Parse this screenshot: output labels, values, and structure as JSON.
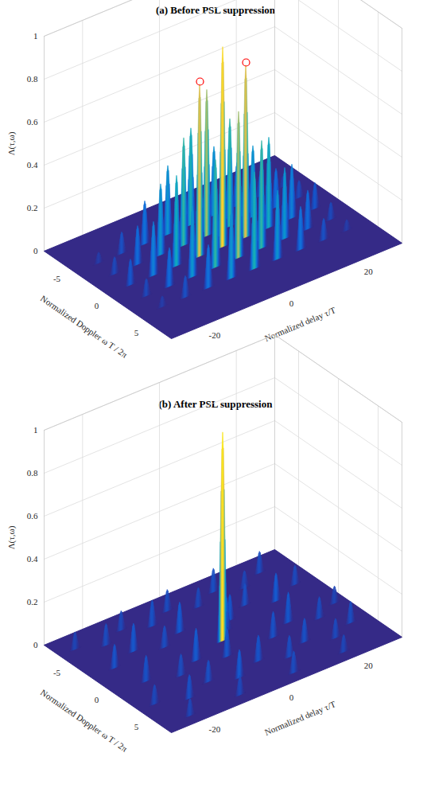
{
  "chart_data": [
    {
      "type": "surface3d",
      "title": "(a) Before PSL suppression",
      "x_label": "Normalized delay τ/T",
      "y_label": "Normalized Doppler ω T / 2π",
      "z_label": "Λ(τ,ω)",
      "xlim": [
        -30,
        30
      ],
      "xticks": [
        -20,
        0,
        20
      ],
      "ylim": [
        -8,
        8
      ],
      "yticks": [
        -5,
        0,
        5
      ],
      "zlim": [
        0,
        1
      ],
      "zticks": [
        0,
        0.2,
        0.4,
        0.6,
        0.8,
        1
      ],
      "grid": true,
      "series": [
        {
          "type": "surface",
          "values": [
            {
              "delay": -24,
              "doppler": -4,
              "value": 0.05
            },
            {
              "delay": -18,
              "doppler": -4,
              "value": 0.1
            },
            {
              "delay": -12,
              "doppler": -4,
              "value": 0.2
            },
            {
              "delay": -6,
              "doppler": -4,
              "value": 0.32
            },
            {
              "delay": 0,
              "doppler": -4,
              "value": 0.45
            },
            {
              "delay": 6,
              "doppler": -4,
              "value": 0.32
            },
            {
              "delay": 12,
              "doppler": -4,
              "value": 0.2
            },
            {
              "delay": 18,
              "doppler": -4,
              "value": 0.1
            },
            {
              "delay": 24,
              "doppler": -4,
              "value": 0.05
            },
            {
              "delay": -24,
              "doppler": -2,
              "value": 0.08
            },
            {
              "delay": -18,
              "doppler": -2,
              "value": 0.18
            },
            {
              "delay": -12,
              "doppler": -2,
              "value": 0.33
            },
            {
              "delay": -6,
              "doppler": -2,
              "value": 0.5
            },
            {
              "delay": 0,
              "doppler": -2,
              "value": 0.68
            },
            {
              "delay": 6,
              "doppler": -2,
              "value": 0.5
            },
            {
              "delay": 12,
              "doppler": -2,
              "value": 0.33
            },
            {
              "delay": 18,
              "doppler": -2,
              "value": 0.18
            },
            {
              "delay": 24,
              "doppler": -2,
              "value": 0.08
            },
            {
              "delay": -24,
              "doppler": 0,
              "value": 0.12
            },
            {
              "delay": -18,
              "doppler": 0,
              "value": 0.25
            },
            {
              "delay": -12,
              "doppler": 0,
              "value": 0.42
            },
            {
              "delay": -6,
              "doppler": 0,
              "value": 0.8
            },
            {
              "delay": 0,
              "doppler": 0,
              "value": 0.93
            },
            {
              "delay": 6,
              "doppler": 0,
              "value": 0.8
            },
            {
              "delay": 12,
              "doppler": 0,
              "value": 0.42
            },
            {
              "delay": 18,
              "doppler": 0,
              "value": 0.25
            },
            {
              "delay": 24,
              "doppler": 0,
              "value": 0.12
            },
            {
              "delay": -24,
              "doppler": 2,
              "value": 0.08
            },
            {
              "delay": -18,
              "doppler": 2,
              "value": 0.18
            },
            {
              "delay": -12,
              "doppler": 2,
              "value": 0.33
            },
            {
              "delay": -6,
              "doppler": 2,
              "value": 0.5
            },
            {
              "delay": 0,
              "doppler": 2,
              "value": 0.68
            },
            {
              "delay": 6,
              "doppler": 2,
              "value": 0.5
            },
            {
              "delay": 12,
              "doppler": 2,
              "value": 0.33
            },
            {
              "delay": 18,
              "doppler": 2,
              "value": 0.18
            },
            {
              "delay": 24,
              "doppler": 2,
              "value": 0.08
            },
            {
              "delay": -24,
              "doppler": 4,
              "value": 0.05
            },
            {
              "delay": -18,
              "doppler": 4,
              "value": 0.1
            },
            {
              "delay": -12,
              "doppler": 4,
              "value": 0.2
            },
            {
              "delay": -6,
              "doppler": 4,
              "value": 0.32
            },
            {
              "delay": 0,
              "doppler": 4,
              "value": 0.45
            },
            {
              "delay": 6,
              "doppler": 4,
              "value": 0.32
            },
            {
              "delay": 12,
              "doppler": 4,
              "value": 0.2
            },
            {
              "delay": 18,
              "doppler": 4,
              "value": 0.1
            },
            {
              "delay": 24,
              "doppler": 4,
              "value": 0.05
            }
          ]
        },
        {
          "type": "scatter",
          "marker": "circle",
          "color": "red",
          "values": [
            {
              "delay": -6,
              "doppler": 0,
              "value": 0.8
            },
            {
              "delay": 6,
              "doppler": 0,
              "value": 0.8
            }
          ]
        }
      ]
    },
    {
      "type": "surface3d",
      "title": "(b) After PSL suppression",
      "x_label": "Normalized delay τ/T",
      "y_label": "Normalized Doppler ω T / 2π",
      "z_label": "Λ(τ,ω)",
      "xlim": [
        -30,
        30
      ],
      "xticks": [
        -20,
        0,
        20
      ],
      "ylim": [
        -8,
        8
      ],
      "yticks": [
        -5,
        0,
        5
      ],
      "zlim": [
        0,
        1
      ],
      "zticks": [
        0,
        0.2,
        0.4,
        0.6,
        0.8,
        1
      ],
      "grid": true,
      "series": [
        {
          "type": "surface",
          "values": [
            {
              "delay": -26,
              "doppler": -6,
              "value": 0.08
            },
            {
              "delay": -20,
              "doppler": -5,
              "value": 0.1
            },
            {
              "delay": -14,
              "doppler": -6,
              "value": 0.09
            },
            {
              "delay": -8,
              "doppler": -5,
              "value": 0.12
            },
            {
              "delay": -2,
              "doppler": -6,
              "value": 0.1
            },
            {
              "delay": 4,
              "doppler": -5,
              "value": 0.09
            },
            {
              "delay": 10,
              "doppler": -6,
              "value": 0.11
            },
            {
              "delay": 16,
              "doppler": -5,
              "value": 0.08
            },
            {
              "delay": 22,
              "doppler": -6,
              "value": 0.1
            },
            {
              "delay": -24,
              "doppler": -2,
              "value": 0.11
            },
            {
              "delay": -17,
              "doppler": -3,
              "value": 0.13
            },
            {
              "delay": -11,
              "doppler": -2,
              "value": 0.1
            },
            {
              "delay": -5,
              "doppler": -3,
              "value": 0.14
            },
            {
              "delay": 6,
              "doppler": -2,
              "value": 0.12
            },
            {
              "delay": 12,
              "doppler": -3,
              "value": 0.1
            },
            {
              "delay": 18,
              "doppler": -2,
              "value": 0.13
            },
            {
              "delay": 25,
              "doppler": -3,
              "value": 0.09
            },
            {
              "delay": -22,
              "doppler": 1,
              "value": 0.12
            },
            {
              "delay": -15,
              "doppler": 2,
              "value": 0.1
            },
            {
              "delay": -9,
              "doppler": 1,
              "value": 0.15
            },
            {
              "delay": -3,
              "doppler": 2,
              "value": 0.13
            },
            {
              "delay": 3,
              "doppler": -1,
              "value": 0.16
            },
            {
              "delay": 9,
              "doppler": 2,
              "value": 0.12
            },
            {
              "delay": 15,
              "doppler": 1,
              "value": 0.14
            },
            {
              "delay": 21,
              "doppler": 2,
              "value": 0.1
            },
            {
              "delay": 27,
              "doppler": 1,
              "value": 0.08
            },
            {
              "delay": -26,
              "doppler": 4,
              "value": 0.09
            },
            {
              "delay": -19,
              "doppler": 5,
              "value": 0.11
            },
            {
              "delay": -12,
              "doppler": 4,
              "value": 0.1
            },
            {
              "delay": -6,
              "doppler": 5,
              "value": 0.13
            },
            {
              "delay": 1,
              "doppler": 4,
              "value": 0.12
            },
            {
              "delay": 7,
              "doppler": 5,
              "value": 0.1
            },
            {
              "delay": 13,
              "doppler": 4,
              "value": 0.11
            },
            {
              "delay": 19,
              "doppler": 5,
              "value": 0.09
            },
            {
              "delay": 25,
              "doppler": 4,
              "value": 0.1
            },
            {
              "delay": -23,
              "doppler": 7,
              "value": 0.08
            },
            {
              "delay": -10,
              "doppler": 7,
              "value": 0.09
            },
            {
              "delay": 4,
              "doppler": 7,
              "value": 0.1
            },
            {
              "delay": 17,
              "doppler": 7,
              "value": 0.08
            },
            {
              "delay": 0,
              "doppler": 0,
              "value": 0.97
            }
          ]
        }
      ]
    }
  ]
}
